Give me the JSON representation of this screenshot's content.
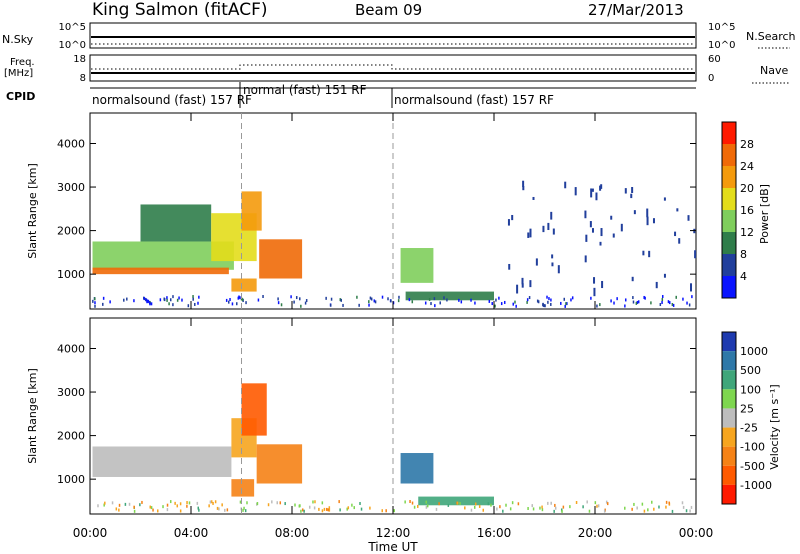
{
  "header": {
    "site": "King Salmon (fitACF)",
    "beam": "Beam 09",
    "date": "27/Mar/2013"
  },
  "strips": {
    "nsky_label": "N.Sky",
    "nsky_ticks": [
      "10^5",
      "10^0"
    ],
    "nsearch_label": "N.Search",
    "nsearch_ticks": [
      "10^5",
      "10^0"
    ],
    "freq_label_1": "Freq.",
    "freq_label_2": "[MHz]",
    "freq_ticks": [
      "18",
      "8"
    ],
    "nave_label": "Nave",
    "nave_ticks": [
      "60",
      "0"
    ],
    "cpid_label": "CPID",
    "cpid_segments": [
      {
        "label": "normalsound (fast) 157 RF",
        "start_h": 0,
        "end_h": 6
      },
      {
        "label": "normal (fast) 151 RF",
        "start_h": 6,
        "end_h": 12
      },
      {
        "label": "normalsound (fast) 157 RF",
        "start_h": 12,
        "end_h": 24
      }
    ]
  },
  "axes": {
    "xlabel": "Time UT",
    "x_tick_labels": [
      "00:00",
      "04:00",
      "08:00",
      "12:00",
      "16:00",
      "20:00",
      "00:00"
    ],
    "ylabel_power": "Slant Range [km]",
    "ylabel_velocity": "Slant Range [km]",
    "y_tick_labels": [
      "1000",
      "2000",
      "3000",
      "4000"
    ]
  },
  "colorbars": {
    "power": {
      "label": "Power [dB]",
      "ticks": [
        "4",
        "8",
        "12",
        "16",
        "20",
        "24",
        "28"
      ],
      "colors": [
        "#0a14ff",
        "#213f9c",
        "#2f7d4a",
        "#7fce5c",
        "#e3dd1b",
        "#f49a0c",
        "#f06a08",
        "#ff1a00"
      ]
    },
    "velocity": {
      "label": "Velocity [m s⁻¹]",
      "ticks": [
        "1000",
        "500",
        "100",
        "25",
        "-25",
        "-100",
        "-500",
        "-1000"
      ],
      "colors": [
        "#1e3aaf",
        "#2e78a8",
        "#3fa67a",
        "#7ed64f",
        "#bdbdbd",
        "#f6a51f",
        "#f58216",
        "#ff5a00",
        "#ff1a00"
      ]
    }
  },
  "chart_data": [
    {
      "type": "heatmap",
      "title": "Power",
      "xlabel": "Time UT",
      "ylabel": "Slant Range [km]",
      "xlim": [
        0,
        24
      ],
      "ylim": [
        200,
        4700
      ],
      "colorbar_label": "Power [dB]",
      "colorbar_range": [
        0,
        32
      ],
      "regions": [
        {
          "t": [
            0.1,
            5.7
          ],
          "r": [
            1100,
            1750
          ],
          "value": 14
        },
        {
          "t": [
            0.1,
            5.5
          ],
          "r": [
            1000,
            1150
          ],
          "value": 26
        },
        {
          "t": [
            2.0,
            4.8
          ],
          "r": [
            1750,
            2600
          ],
          "value": 8
        },
        {
          "t": [
            4.8,
            6.6
          ],
          "r": [
            1300,
            2400
          ],
          "value": 16
        },
        {
          "t": [
            6.0,
            6.8
          ],
          "r": [
            2000,
            2900
          ],
          "value": 20
        },
        {
          "t": [
            6.7,
            8.4
          ],
          "r": [
            900,
            1800
          ],
          "value": 27
        },
        {
          "t": [
            5.6,
            6.6
          ],
          "r": [
            600,
            900
          ],
          "value": 20
        },
        {
          "t": [
            12.3,
            13.6
          ],
          "r": [
            800,
            1600
          ],
          "value": 12
        },
        {
          "t": [
            12.5,
            16.0
          ],
          "r": [
            400,
            600
          ],
          "value": 9
        },
        {
          "t": [
            16.5,
            24.0
          ],
          "r": [
            600,
            3200
          ],
          "value": 6
        }
      ]
    },
    {
      "type": "heatmap",
      "title": "Velocity",
      "xlabel": "Time UT",
      "ylabel": "Slant Range [km]",
      "xlim": [
        0,
        24
      ],
      "ylim": [
        200,
        4700
      ],
      "colorbar_label": "Velocity [m s⁻¹]",
      "colorbar_range": [
        -1000,
        1000
      ],
      "regions": [
        {
          "t": [
            0.1,
            5.6
          ],
          "r": [
            1050,
            1750
          ],
          "value": 0
        },
        {
          "t": [
            5.6,
            6.6
          ],
          "r": [
            1500,
            2400
          ],
          "value": -50
        },
        {
          "t": [
            6.0,
            7.0
          ],
          "r": [
            2000,
            3200
          ],
          "value": -600
        },
        {
          "t": [
            6.6,
            8.4
          ],
          "r": [
            900,
            1800
          ],
          "value": -500
        },
        {
          "t": [
            5.6,
            6.5
          ],
          "r": [
            600,
            1000
          ],
          "value": -200
        },
        {
          "t": [
            12.3,
            13.6
          ],
          "r": [
            900,
            1600
          ],
          "value": 600
        },
        {
          "t": [
            13.0,
            16.0
          ],
          "r": [
            400,
            600
          ],
          "value": 150
        }
      ]
    }
  ]
}
